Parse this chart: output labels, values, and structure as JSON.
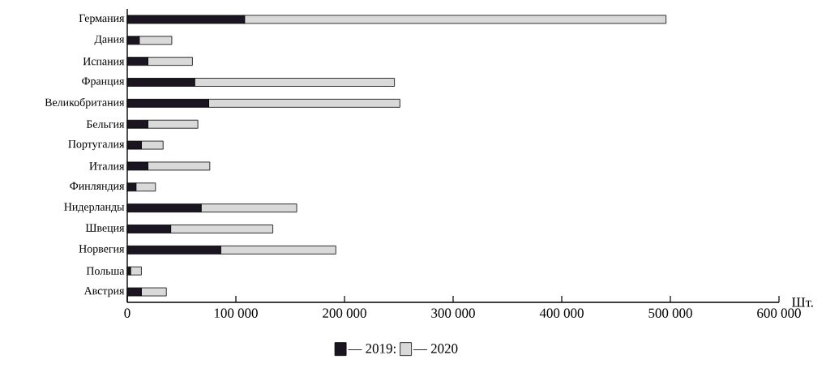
{
  "chart_data": {
    "type": "bar",
    "orientation": "horizontal",
    "stacked": true,
    "categories": [
      "Германия",
      "Дания",
      "Испания",
      "Франция",
      "Великобритания",
      "Бельгия",
      "Португалия",
      "Италия",
      "Финляндия",
      "Нидерланды",
      "Швеция",
      "Норвегия",
      "Польша",
      "Австрия"
    ],
    "series": [
      {
        "name": "— 2019:",
        "color": "#1a1520",
        "values": [
          108000,
          11000,
          19000,
          62000,
          75000,
          19000,
          13000,
          19000,
          8000,
          68000,
          40000,
          86000,
          3000,
          13000
        ]
      },
      {
        "name": "— 2020",
        "color": "#d9d9d9",
        "values": [
          388000,
          30000,
          41000,
          184000,
          176000,
          46000,
          20000,
          57000,
          18000,
          88000,
          94000,
          106000,
          10000,
          23000
        ]
      }
    ],
    "xlabel": "Шт.",
    "xlim": [
      0,
      600000
    ],
    "xticks": [
      0,
      {
        "value": 100000,
        "label": "100 000"
      },
      {
        "value": 200000,
        "label": "200 000"
      },
      {
        "value": 300000,
        "label": "300 000"
      },
      {
        "value": 400000,
        "label": "400 000"
      },
      {
        "value": 500000,
        "label": "500 000"
      },
      {
        "value": 600000,
        "label": "600 000"
      }
    ],
    "legend": "bottom"
  }
}
